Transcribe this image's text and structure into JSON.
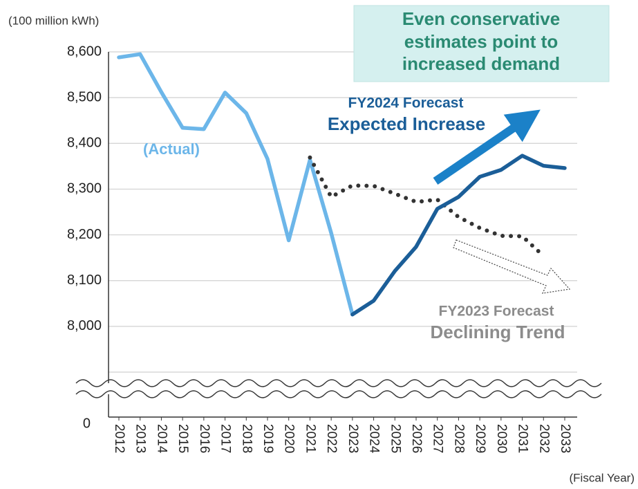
{
  "chart_data": {
    "type": "line",
    "y_label": "(100 million kWh)",
    "x_label": "(Fiscal Year)",
    "categories": [
      "2012",
      "2013",
      "2014",
      "2015",
      "2016",
      "2017",
      "2018",
      "2019",
      "2020",
      "2021",
      "2022",
      "2023",
      "2024",
      "2025",
      "2026",
      "2027",
      "2028",
      "2029",
      "2030",
      "2031",
      "2032",
      "2033"
    ],
    "series": [
      {
        "name": "(Actual)",
        "color": "#6cb6e9",
        "style": "solid",
        "values": [
          8588,
          8595,
          8512,
          8434,
          8431,
          8511,
          8466,
          8366,
          8188,
          8364,
          8204,
          8026,
          null,
          null,
          null,
          null,
          null,
          null,
          null,
          null,
          null,
          null
        ]
      },
      {
        "name": "FY2023 Forecast",
        "color": "#333333",
        "style": "dotted",
        "values": [
          null,
          null,
          null,
          null,
          null,
          null,
          null,
          null,
          null,
          8369,
          8283,
          8308,
          8307,
          8290,
          8272,
          8277,
          8239,
          8215,
          8198,
          8197,
          8154,
          null
        ]
      },
      {
        "name": "FY2024 Forecast",
        "color": "#1b5e98",
        "style": "solid",
        "values": [
          null,
          null,
          null,
          null,
          null,
          null,
          null,
          null,
          null,
          null,
          null,
          8026,
          8056,
          8121,
          8174,
          8257,
          8283,
          8327,
          8342,
          8373,
          8351,
          8346
        ]
      }
    ],
    "ylim": [
      0,
      8600
    ],
    "axis_break": [
      0,
      7900
    ],
    "yticks": [
      0,
      {
        "value": 8000,
        "label": "8,000"
      },
      {
        "value": 8100,
        "label": "8,100"
      },
      {
        "value": 8200,
        "label": "8,200"
      },
      {
        "value": 8300,
        "label": "8,300"
      },
      {
        "value": 8400,
        "label": "8,400"
      },
      {
        "value": 8500,
        "label": "8,500"
      },
      {
        "value": 8600,
        "label": "8,600"
      }
    ],
    "grid": true,
    "callout": [
      "Even conservative",
      "estimates point to",
      "increased demand"
    ],
    "annotations": [
      "FY2024 Forecast",
      "Expected Increase",
      "FY2023 Forecast",
      "Declining Trend"
    ]
  }
}
